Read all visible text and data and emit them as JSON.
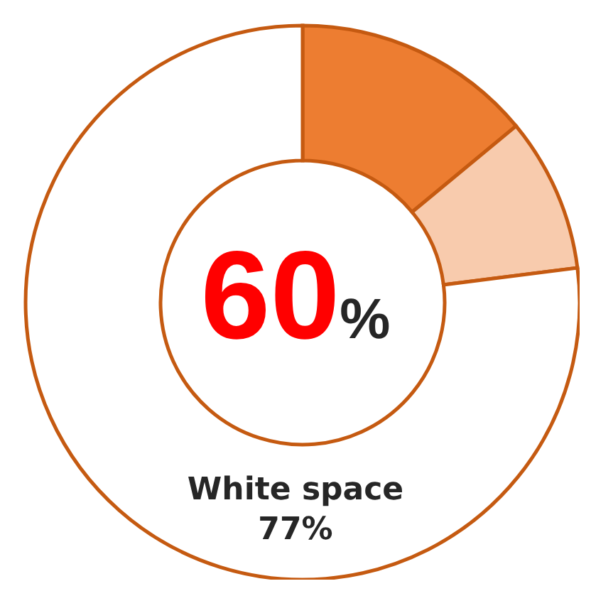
{
  "chart_data": {
    "type": "donut",
    "categories": [
      null,
      null,
      "White space"
    ],
    "values": [
      14,
      9,
      77
    ],
    "colors": [
      "#ed7d31",
      "#f8cbad",
      "#ffffff"
    ],
    "value_labels": [
      null,
      null,
      "77%"
    ],
    "annotations": [
      "60%"
    ]
  }
}
